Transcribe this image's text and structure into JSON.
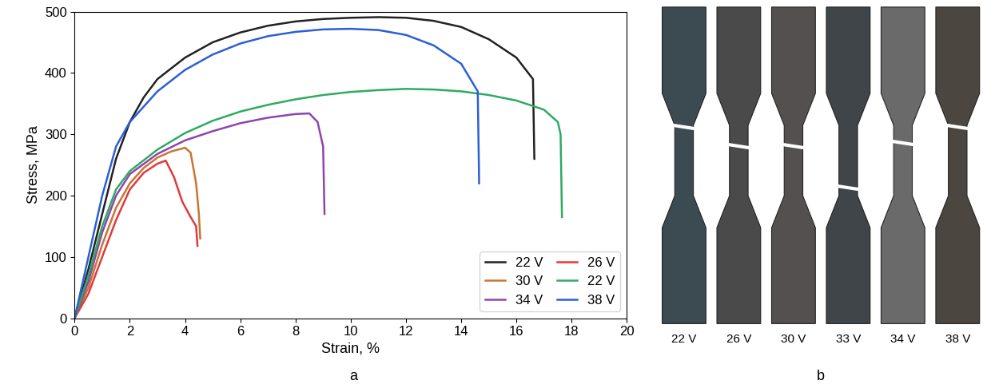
{
  "chart_data": {
    "type": "line",
    "x_label": "Strain, %",
    "y_label": "Stress, MPa",
    "annotations": [
      "a"
    ],
    "xlim": [
      0,
      20
    ],
    "xticks": [
      0,
      2,
      4,
      6,
      8,
      10,
      12,
      14,
      16,
      18,
      20
    ],
    "ylim": [
      0,
      500
    ],
    "yticks": [
      0,
      100,
      200,
      300,
      400,
      500
    ],
    "grid": false,
    "legend": "lower right",
    "series": [
      {
        "name": "22 V",
        "color": "#222222",
        "x": [
          0,
          0.5,
          1,
          1.5,
          2,
          2.5,
          3,
          4,
          5,
          6,
          7,
          8,
          9,
          10,
          11,
          12,
          13,
          14,
          15,
          16,
          16.6,
          16.65
        ],
        "values": [
          0,
          80,
          170,
          260,
          320,
          360,
          390,
          425,
          450,
          466,
          477,
          484,
          488,
          490,
          491,
          490,
          485,
          475,
          455,
          425,
          390,
          260
        ]
      },
      {
        "name": "30 V",
        "color": "#c87533",
        "x": [
          0,
          0.5,
          1,
          1.5,
          2,
          2.5,
          3,
          3.5,
          4,
          4.2,
          4.4,
          4.5,
          4.55
        ],
        "values": [
          0,
          50,
          120,
          180,
          220,
          245,
          262,
          272,
          278,
          270,
          220,
          170,
          130
        ]
      },
      {
        "name": "34 V",
        "color": "#8e44ad",
        "x": [
          0,
          0.5,
          1,
          1.5,
          2,
          3,
          4,
          5,
          6,
          7,
          8,
          8.5,
          8.8,
          9,
          9.05
        ],
        "values": [
          0,
          60,
          140,
          200,
          235,
          268,
          290,
          305,
          318,
          327,
          333,
          334,
          320,
          280,
          170
        ]
      },
      {
        "name": "26 V",
        "color": "#e03a3a",
        "x": [
          0,
          0.5,
          1,
          1.5,
          2,
          2.5,
          3,
          3.3,
          3.6,
          3.9,
          4.2,
          4.4,
          4.45
        ],
        "values": [
          0,
          40,
          100,
          160,
          210,
          237,
          252,
          257,
          230,
          190,
          165,
          150,
          118
        ]
      },
      {
        "name": "22 V",
        "color": "#2eaa62",
        "x": [
          0,
          0.5,
          1,
          1.5,
          2,
          3,
          4,
          5,
          6,
          7,
          8,
          9,
          10,
          11,
          12,
          13,
          14,
          15,
          16,
          17,
          17.5,
          17.6,
          17.65
        ],
        "values": [
          0,
          70,
          150,
          210,
          240,
          275,
          302,
          322,
          337,
          348,
          357,
          364,
          369,
          372,
          374,
          373,
          370,
          364,
          355,
          340,
          320,
          300,
          165
        ]
      },
      {
        "name": "38 V",
        "color": "#2a5fd6",
        "x": [
          0,
          0.5,
          1,
          1.5,
          2,
          3,
          4,
          5,
          6,
          7,
          8,
          9,
          10,
          11,
          12,
          13,
          14,
          14.6,
          14.65
        ],
        "values": [
          0,
          100,
          200,
          280,
          320,
          370,
          405,
          430,
          448,
          460,
          467,
          471,
          472,
          470,
          462,
          445,
          415,
          370,
          220
        ]
      }
    ]
  },
  "photo": {
    "caption": "b",
    "specimens": [
      "22 V",
      "26 V",
      "30 V",
      "33 V",
      "34 V",
      "38 V"
    ]
  }
}
